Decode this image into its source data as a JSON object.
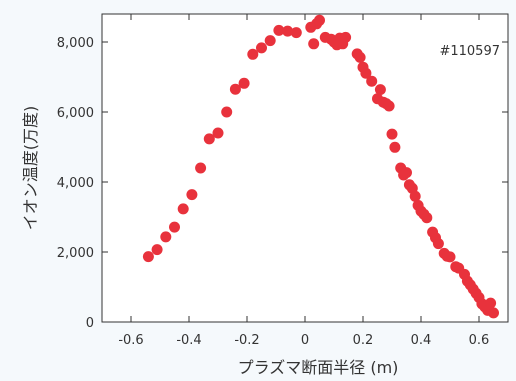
{
  "chart_data": {
    "type": "scatter",
    "title": "",
    "xlabel": "プラズマ断面半径 (m)",
    "ylabel": "イオン温度(万度)",
    "annotation": "#110597",
    "xlim": [
      -0.7,
      0.7
    ],
    "ylim": [
      0,
      8800
    ],
    "x_ticks": [
      -0.6,
      -0.4,
      -0.2,
      0,
      0.2,
      0.4,
      0.6
    ],
    "x_tick_labels": [
      "-0.6",
      "-0.4",
      "-0.2",
      "0",
      "0.2",
      "0.4",
      "0.6"
    ],
    "y_ticks": [
      0,
      2000,
      4000,
      6000,
      8000
    ],
    "y_tick_labels": [
      "0",
      "2,000",
      "4,000",
      "6,000",
      "8,000"
    ],
    "grid": false,
    "legend": "none",
    "marker_color": "#e8323c",
    "series": [
      {
        "points": [
          [
            -0.54,
            1870
          ],
          [
            -0.51,
            2070
          ],
          [
            -0.48,
            2430
          ],
          [
            -0.45,
            2710
          ],
          [
            -0.42,
            3230
          ],
          [
            -0.39,
            3640
          ],
          [
            -0.36,
            4400
          ],
          [
            -0.33,
            5230
          ],
          [
            -0.3,
            5400
          ],
          [
            -0.27,
            6000
          ],
          [
            -0.24,
            6650
          ],
          [
            -0.21,
            6820
          ],
          [
            -0.18,
            7650
          ],
          [
            -0.15,
            7830
          ],
          [
            -0.12,
            8040
          ],
          [
            -0.09,
            8330
          ],
          [
            -0.06,
            8310
          ],
          [
            -0.03,
            8270
          ],
          [
            0.02,
            8420
          ],
          [
            0.03,
            7950
          ],
          [
            0.04,
            8520
          ],
          [
            0.05,
            8620
          ],
          [
            0.07,
            8130
          ],
          [
            0.09,
            8080
          ],
          [
            0.1,
            8000
          ],
          [
            0.11,
            7920
          ],
          [
            0.12,
            8110
          ],
          [
            0.13,
            7950
          ],
          [
            0.14,
            8130
          ],
          [
            0.18,
            7660
          ],
          [
            0.19,
            7560
          ],
          [
            0.2,
            7280
          ],
          [
            0.21,
            7110
          ],
          [
            0.23,
            6880
          ],
          [
            0.25,
            6380
          ],
          [
            0.26,
            6640
          ],
          [
            0.27,
            6280
          ],
          [
            0.28,
            6240
          ],
          [
            0.29,
            6170
          ],
          [
            0.3,
            5370
          ],
          [
            0.31,
            4990
          ],
          [
            0.33,
            4400
          ],
          [
            0.34,
            4200
          ],
          [
            0.35,
            4270
          ],
          [
            0.36,
            3920
          ],
          [
            0.37,
            3820
          ],
          [
            0.38,
            3590
          ],
          [
            0.39,
            3330
          ],
          [
            0.4,
            3170
          ],
          [
            0.41,
            3080
          ],
          [
            0.42,
            2980
          ],
          [
            0.44,
            2570
          ],
          [
            0.45,
            2410
          ],
          [
            0.46,
            2240
          ],
          [
            0.48,
            1960
          ],
          [
            0.49,
            1880
          ],
          [
            0.5,
            1860
          ],
          [
            0.52,
            1580
          ],
          [
            0.53,
            1540
          ],
          [
            0.55,
            1360
          ],
          [
            0.56,
            1170
          ],
          [
            0.57,
            1060
          ],
          [
            0.58,
            940
          ],
          [
            0.59,
            820
          ],
          [
            0.6,
            700
          ],
          [
            0.61,
            520
          ],
          [
            0.62,
            430
          ],
          [
            0.63,
            330
          ],
          [
            0.64,
            540
          ],
          [
            0.65,
            260
          ]
        ]
      }
    ]
  }
}
